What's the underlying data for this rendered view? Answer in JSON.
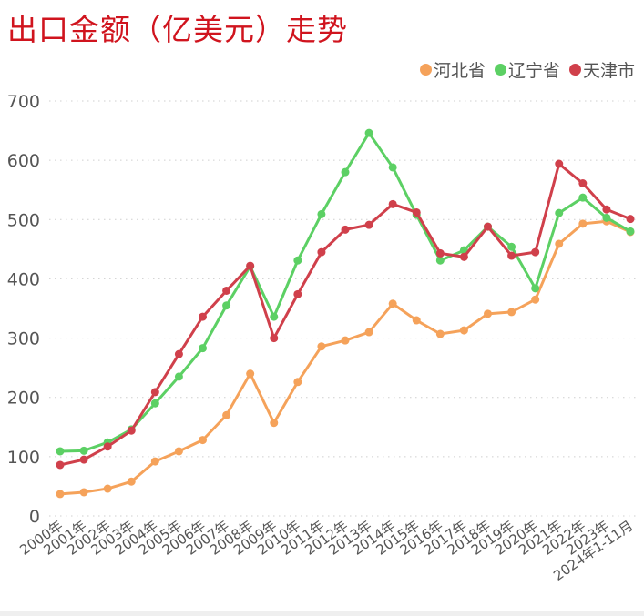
{
  "title": "出口金额（亿美元）走势",
  "legend": [
    {
      "label": "河北省",
      "color": "#f5a25a"
    },
    {
      "label": "辽宁省",
      "color": "#5cd064"
    },
    {
      "label": "天津市",
      "color": "#d0404b"
    }
  ],
  "chart_data": {
    "type": "line",
    "title": "出口金额（亿美元）走势",
    "xlabel": "",
    "ylabel": "",
    "ylim": [
      0,
      700
    ],
    "yticks": [
      0,
      100,
      200,
      300,
      400,
      500,
      600,
      700
    ],
    "grid": true,
    "legend_position": "top-right",
    "categories": [
      "2000年",
      "2001年",
      "2002年",
      "2003年",
      "2004年",
      "2005年",
      "2006年",
      "2007年",
      "2008年",
      "2009年",
      "2010年",
      "2011年",
      "2012年",
      "2013年",
      "2014年",
      "2015年",
      "2016年",
      "2017年",
      "2018年",
      "2019年",
      "2020年",
      "2021年",
      "2022年",
      "2023年",
      "2024年1-11月"
    ],
    "series": [
      {
        "name": "河北省",
        "color": "#f5a25a",
        "values": [
          37,
          40,
          46,
          58,
          92,
          109,
          128,
          170,
          240,
          157,
          226,
          286,
          296,
          310,
          358,
          330,
          307,
          313,
          341,
          344,
          365,
          459,
          493,
          497,
          479
        ]
      },
      {
        "name": "辽宁省",
        "color": "#5cd064",
        "values": [
          109,
          110,
          124,
          146,
          190,
          235,
          283,
          355,
          421,
          336,
          431,
          509,
          580,
          646,
          588,
          508,
          431,
          448,
          488,
          454,
          384,
          511,
          537,
          503,
          480
        ]
      },
      {
        "name": "天津市",
        "color": "#d0404b",
        "values": [
          86,
          95,
          117,
          144,
          209,
          273,
          336,
          380,
          422,
          300,
          374,
          445,
          483,
          491,
          526,
          512,
          443,
          437,
          488,
          439,
          445,
          594,
          561,
          517,
          501
        ]
      }
    ]
  }
}
